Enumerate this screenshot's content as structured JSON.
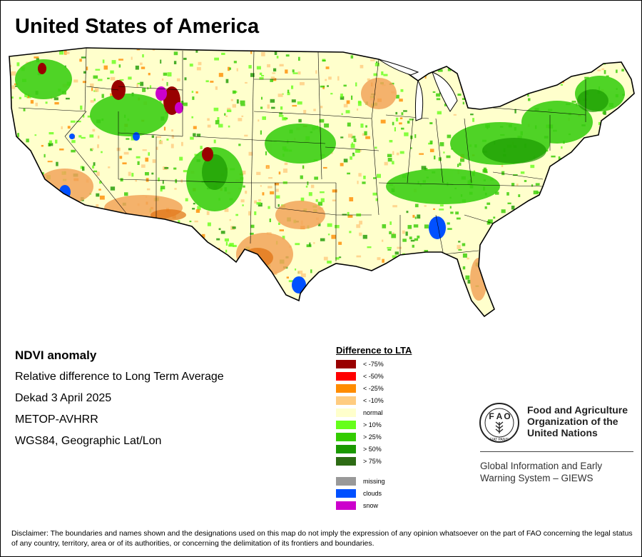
{
  "map": {
    "title": "United States of America"
  },
  "info": {
    "heading": "NDVI anomaly",
    "lines": [
      "Relative difference to Long Term Average",
      "Dekad 3 April 2025",
      "METOP-AVHRR",
      "WGS84, Geographic Lat/Lon"
    ]
  },
  "legend": {
    "title": "Difference to LTA",
    "items": [
      {
        "label": "< -75%",
        "color": "#990000"
      },
      {
        "label": "< -50%",
        "color": "#ff0000"
      },
      {
        "label": "< -25%",
        "color": "#ff8c00"
      },
      {
        "label": "< -10%",
        "color": "#ffcc80"
      },
      {
        "label": "normal",
        "color": "#ffffcc"
      },
      {
        "label": "> 10%",
        "color": "#66ff1a"
      },
      {
        "label": "> 25%",
        "color": "#33cc00"
      },
      {
        "label": "> 50%",
        "color": "#1a9900"
      },
      {
        "label": "> 75%",
        "color": "#2d6b14"
      }
    ],
    "extra": [
      {
        "label": "missing",
        "color": "#999999"
      },
      {
        "label": "clouds",
        "color": "#0050ff"
      },
      {
        "label": "snow",
        "color": "#cc00cc"
      }
    ]
  },
  "fao": {
    "logo_letters": [
      "F",
      "A",
      "O"
    ],
    "logo_motto": "FIAT PANIS",
    "name_lines": [
      "Food and Agriculture",
      "Organization of the",
      "United Nations"
    ],
    "giews_lines": [
      "Global Information and Early",
      "Warning System – GIEWS"
    ]
  },
  "disclaimer": "Disclaimer: The boundaries and names shown and the designations used on this map do not imply the expression of any opinion whatsoever on the part of FAO concerning the legal status of any country, territory, area or of its authorities, or concerning the delimitation of its frontiers and boundaries."
}
